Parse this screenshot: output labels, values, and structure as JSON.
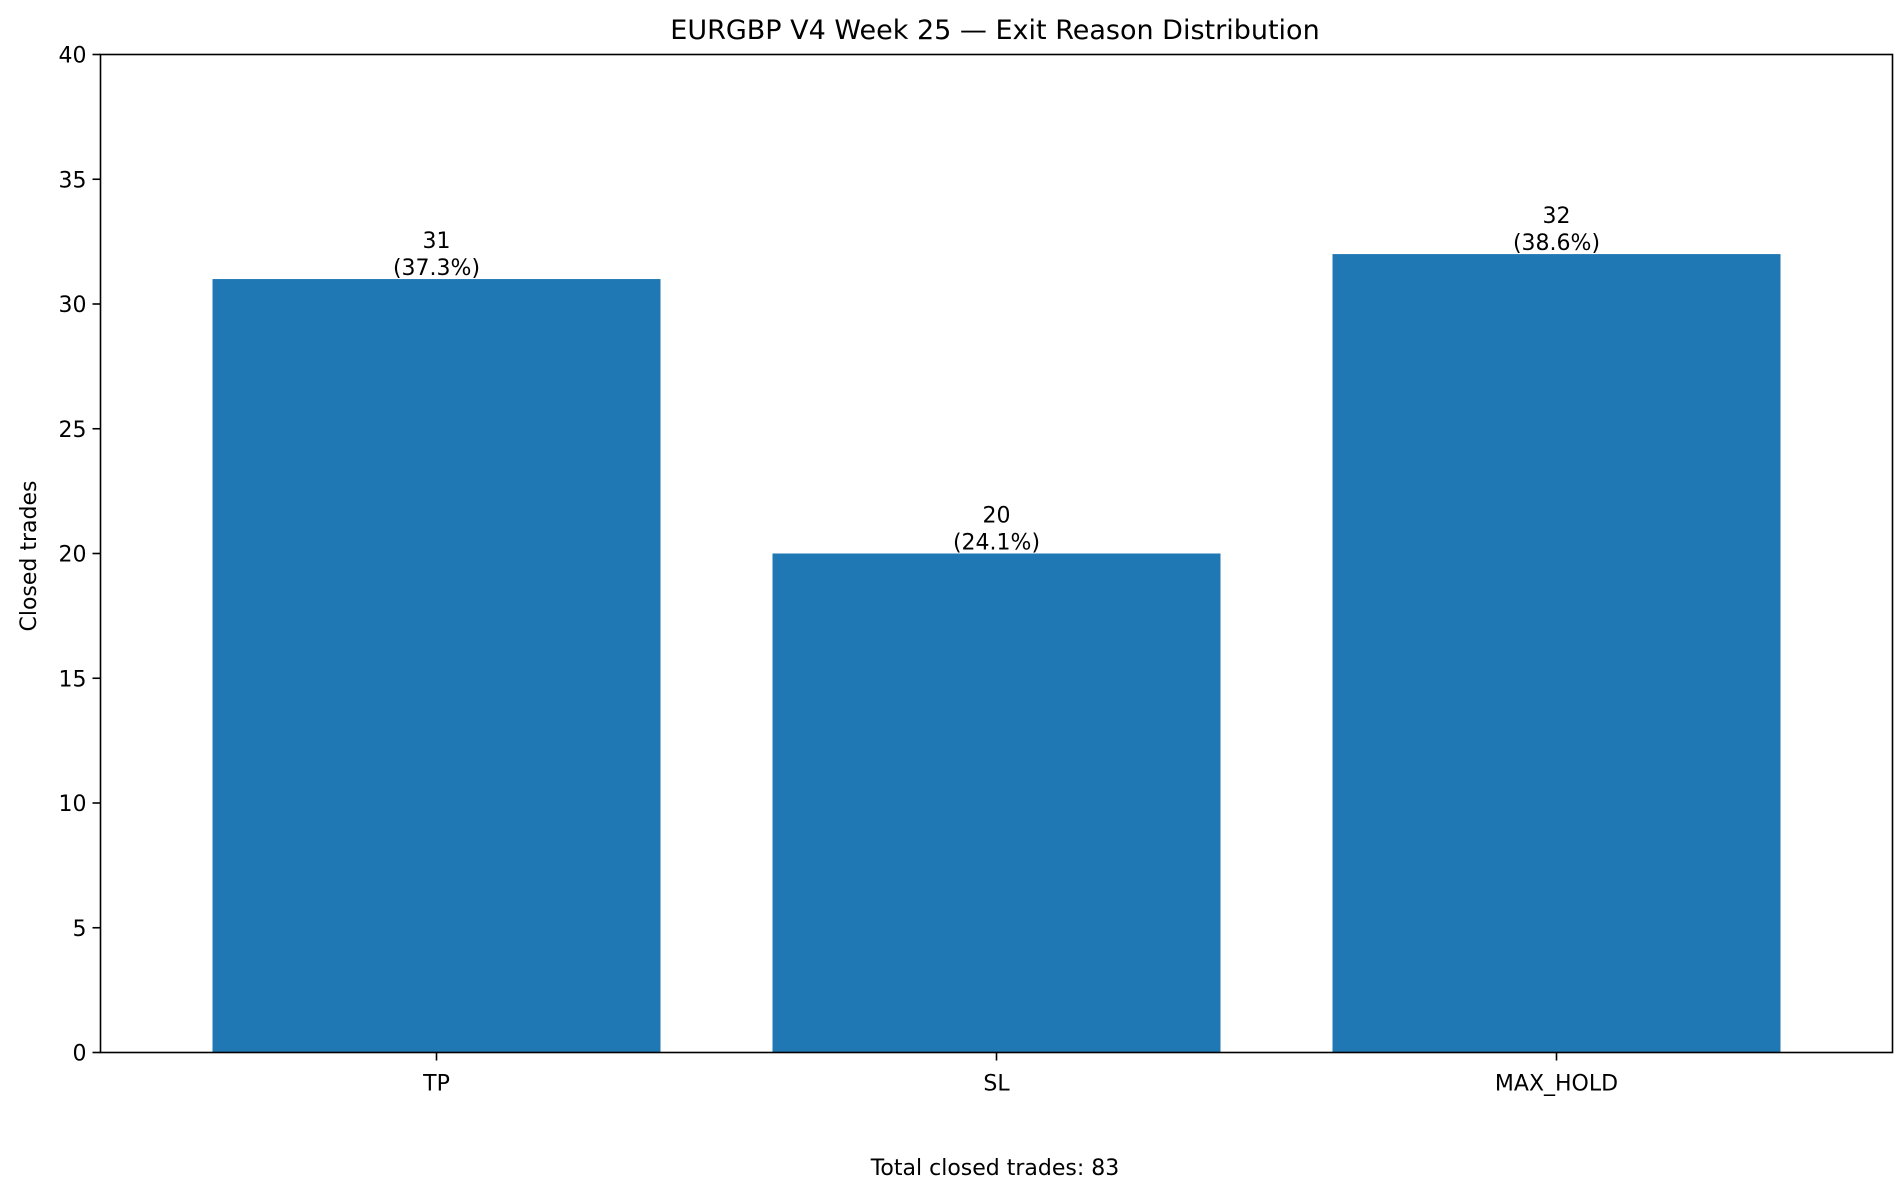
{
  "chart_data": {
    "type": "bar",
    "title": "EURGBP V4 Week 25 — Exit Reason Distribution",
    "xlabel": "",
    "ylabel": "Closed trades",
    "categories": [
      "TP",
      "SL",
      "MAX_HOLD"
    ],
    "values": [
      31,
      20,
      32
    ],
    "bar_labels": [
      [
        "31",
        "(37.3%)"
      ],
      [
        "20",
        "(24.1%)"
      ],
      [
        "32",
        "(38.6%)"
      ]
    ],
    "ylim": [
      0,
      40
    ],
    "yticks": [
      "0",
      "5",
      "10",
      "15",
      "20",
      "25",
      "30",
      "35",
      "40"
    ],
    "grid": false,
    "legend": "none",
    "bar_color": "#1f77b4",
    "footnote": "Total closed trades: 83"
  }
}
